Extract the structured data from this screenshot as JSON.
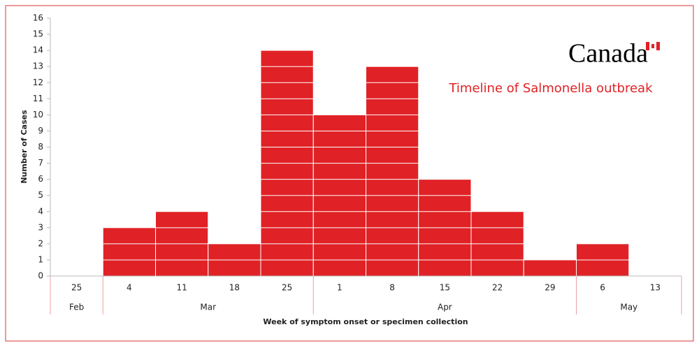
{
  "chart_data": {
    "type": "bar",
    "title": "Timeline of Salmonella outbreak",
    "brand": "Canada",
    "x_label": "Week of symptom onset or specimen collection",
    "y_label": "Number of Cases",
    "categories": [
      "25",
      "4",
      "11",
      "18",
      "25",
      "1",
      "8",
      "15",
      "22",
      "29",
      "6",
      "13"
    ],
    "month_groups": [
      {
        "name": "Feb",
        "span": 1
      },
      {
        "name": "Mar",
        "span": 4
      },
      {
        "name": "Apr",
        "span": 5
      },
      {
        "name": "May",
        "span": 2
      }
    ],
    "values": [
      0,
      3,
      4,
      2,
      14,
      10,
      13,
      6,
      4,
      1,
      2,
      0
    ],
    "color": "#e02226",
    "ylim": [
      0,
      16
    ],
    "yticks": [
      0,
      1,
      2,
      3,
      4,
      5,
      6,
      7,
      8,
      9,
      10,
      11,
      12,
      13,
      14,
      15,
      16
    ]
  }
}
